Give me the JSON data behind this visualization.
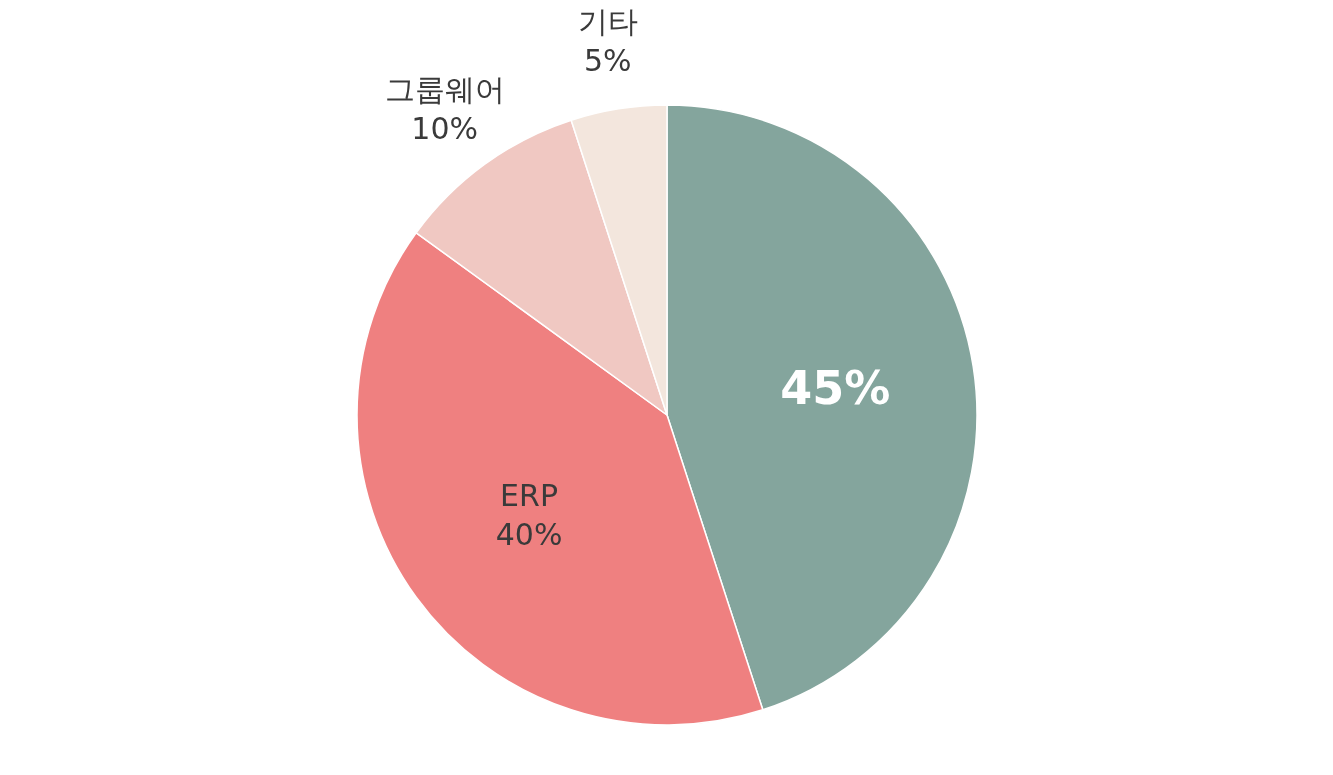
{
  "chart_data": {
    "type": "pie",
    "categories": [
      null,
      "ERP",
      "그룹웨어",
      "기타"
    ],
    "values": [
      45,
      40,
      10,
      5
    ],
    "colors": [
      "#84a59d",
      "#ef8080",
      "#f0c8c2",
      "#f3e6dd"
    ],
    "value_labels": [
      "45%",
      "40%",
      "10%",
      "5%"
    ]
  }
}
